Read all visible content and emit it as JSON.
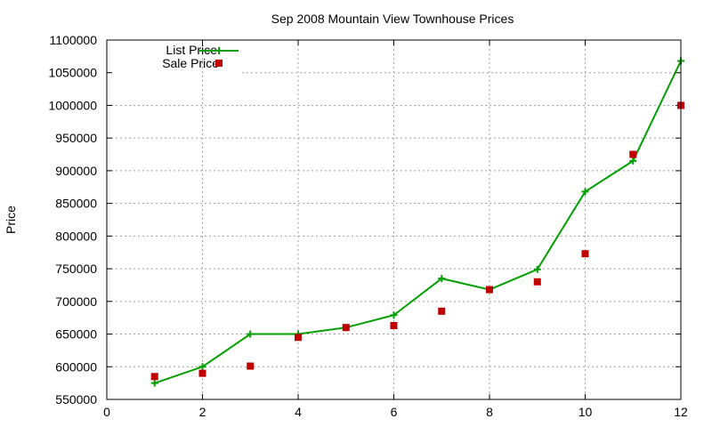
{
  "chart_data": {
    "type": "line",
    "title": "Sep 2008 Mountain View Townhouse Prices",
    "xlabel": "",
    "ylabel": "Price",
    "xlim": [
      0,
      12
    ],
    "ylim": [
      550000,
      1100000
    ],
    "xticks": [
      0,
      2,
      4,
      6,
      8,
      10,
      12
    ],
    "yticks": [
      550000,
      600000,
      650000,
      700000,
      750000,
      800000,
      850000,
      900000,
      950000,
      1000000,
      1050000,
      1100000
    ],
    "grid": true,
    "legend_position": "top-left",
    "x": [
      1,
      2,
      3,
      4,
      5,
      6,
      7,
      8,
      9,
      10,
      11,
      12
    ],
    "series": [
      {
        "name": "List Price",
        "style": "line-with-plus-markers",
        "color": "#00a000",
        "values": [
          575000,
          600000,
          650000,
          650000,
          660000,
          679000,
          735000,
          718000,
          749000,
          868000,
          915000,
          1068000
        ]
      },
      {
        "name": "Sale Price",
        "style": "square-markers",
        "color": "#c00000",
        "values": [
          585000,
          590000,
          601000,
          645000,
          660000,
          663000,
          685000,
          718000,
          730000,
          773000,
          925000,
          1000000
        ]
      }
    ]
  }
}
